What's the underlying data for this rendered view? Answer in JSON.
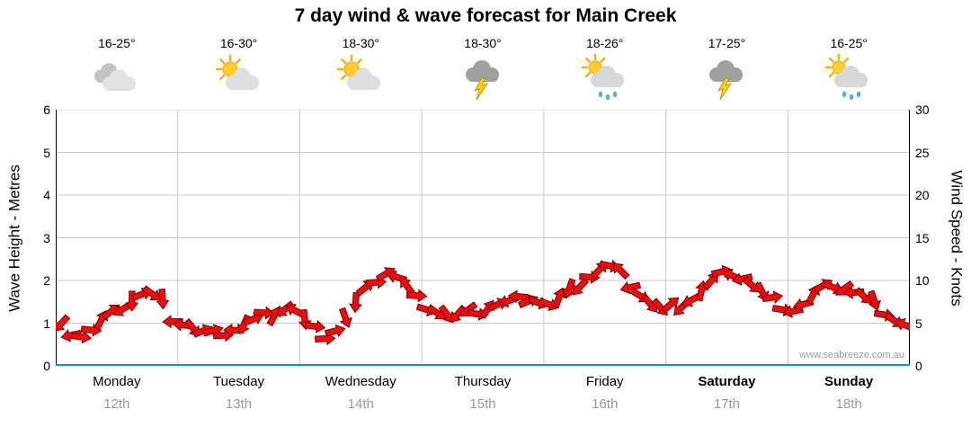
{
  "title": "7 day wind & wave forecast for Main Creek",
  "watermark": "www.seabreeze.com.au",
  "axes": {
    "left_title": "Wave Height - Metres",
    "right_title": "Wind Speed - Knots"
  },
  "days": [
    {
      "name": "Monday",
      "date": "12th",
      "temp": "16-25°",
      "icon": "cloudy",
      "bold": false
    },
    {
      "name": "Tuesday",
      "date": "13th",
      "temp": "16-30°",
      "icon": "partly-sunny",
      "bold": false
    },
    {
      "name": "Wednesday",
      "date": "14th",
      "temp": "18-30°",
      "icon": "partly-sunny",
      "bold": false
    },
    {
      "name": "Thursday",
      "date": "15th",
      "temp": "18-30°",
      "icon": "thunderstorm",
      "bold": false
    },
    {
      "name": "Friday",
      "date": "16th",
      "temp": "18-26°",
      "icon": "partly-sunny-showers",
      "bold": false
    },
    {
      "name": "Saturday",
      "date": "17th",
      "temp": "17-25°",
      "icon": "thunderstorm",
      "bold": true
    },
    {
      "name": "Sunday",
      "date": "18th",
      "temp": "16-25°",
      "icon": "partly-sunny-showers",
      "bold": true
    }
  ],
  "colors": {
    "arrow_fill": "#ee0c0c",
    "arrow_stroke": "#7d0000",
    "grid": "#c8c8c8",
    "axis": "#000000",
    "baseline": "#00a0a0",
    "date_gray": "#999999"
  },
  "chart_data": {
    "type": "line",
    "title": "7 day wind & wave forecast for Main Creek",
    "x_categories": [
      "Monday 12th",
      "Tuesday 13th",
      "Wednesday 14th",
      "Thursday 15th",
      "Friday 16th",
      "Saturday 17th",
      "Sunday 18th"
    ],
    "points_per_day": 12,
    "y_left": {
      "label": "Wave Height - Metres",
      "min": 0,
      "max": 6,
      "ticks": [
        0,
        1,
        2,
        3,
        4,
        5,
        6
      ]
    },
    "y_right": {
      "label": "Wind Speed - Knots",
      "min": 0,
      "max": 30,
      "ticks": [
        0,
        5,
        10,
        15,
        20,
        25,
        30
      ]
    },
    "grid": true,
    "series": [
      {
        "name": "Wind speed (knots, red wind arrows)",
        "values": [
          4.5,
          4.0,
          3.6,
          4.2,
          5.2,
          6.0,
          7.0,
          7.8,
          8.4,
          8.2,
          7.4,
          5.6,
          5.0,
          4.4,
          3.9,
          3.7,
          4.0,
          4.4,
          4.8,
          5.3,
          5.8,
          6.3,
          6.8,
          6.5,
          5.2,
          4.2,
          3.6,
          4.3,
          5.6,
          7.2,
          8.8,
          10.2,
          11.0,
          10.4,
          9.2,
          7.8,
          7.0,
          6.4,
          6.0,
          5.8,
          6.1,
          6.5,
          6.9,
          7.2,
          7.4,
          7.7,
          8.0,
          7.6,
          7.2,
          7.8,
          8.6,
          9.6,
          10.6,
          11.3,
          11.5,
          10.8,
          9.6,
          8.4,
          7.2,
          6.6,
          6.8,
          7.2,
          7.9,
          8.8,
          9.8,
          10.6,
          11.0,
          10.4,
          9.4,
          8.4,
          7.6,
          7.0,
          6.6,
          7.2,
          8.2,
          9.0,
          9.6,
          9.2,
          8.6,
          7.9,
          7.2,
          6.4,
          5.5,
          4.8
        ]
      }
    ]
  }
}
